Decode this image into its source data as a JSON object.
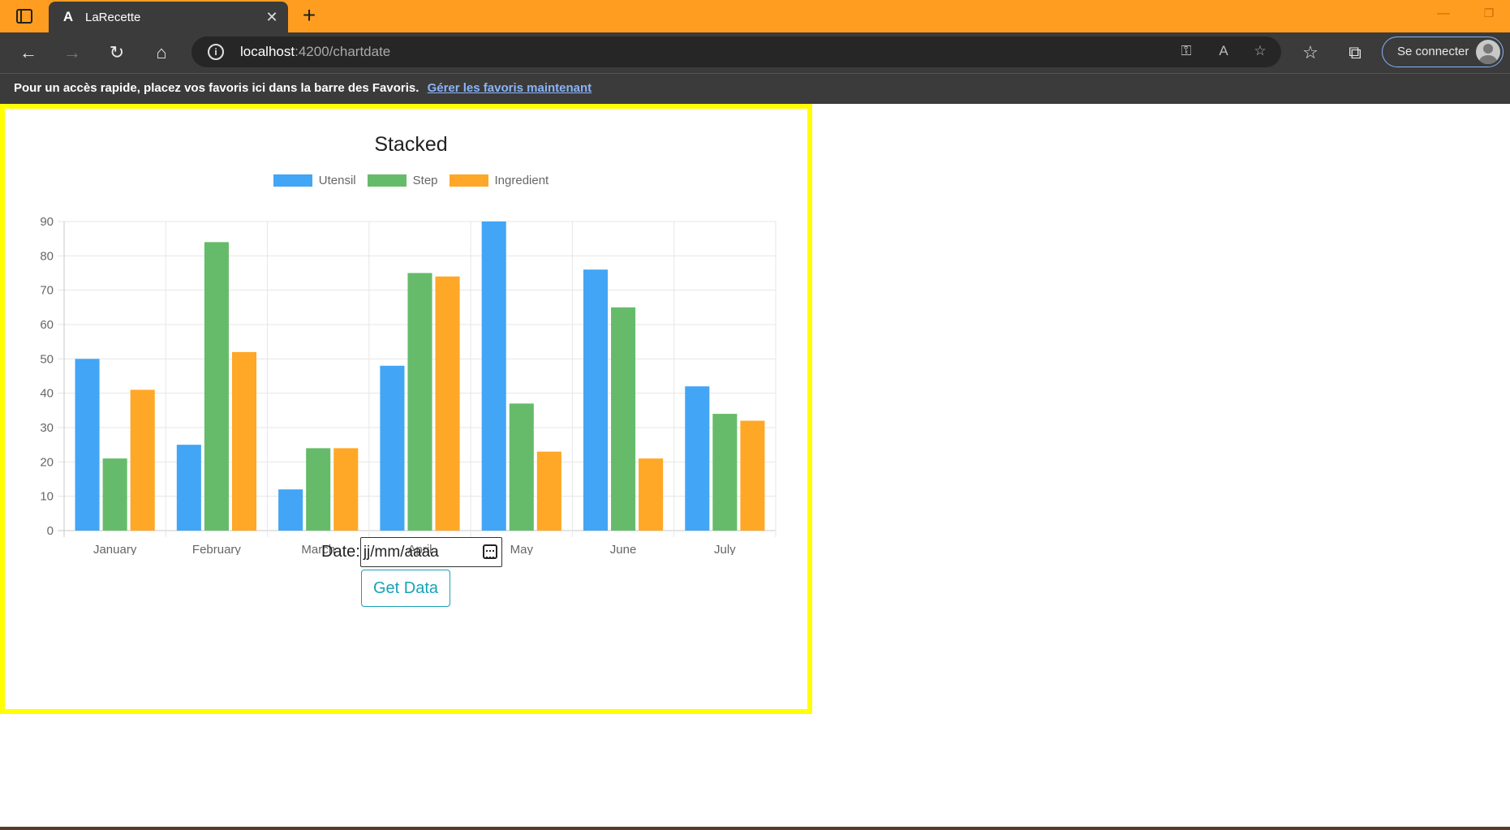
{
  "browser": {
    "tab_title": "LaRecette",
    "tab_favicon": "A",
    "url_host": "localhost",
    "url_path": ":4200/chartdate",
    "signin_label": "Se connecter",
    "accent_color": "#ff9d21"
  },
  "favorites_bar": {
    "message": "Pour un accès rapide, placez vos favoris ici dans la barre des Favoris.",
    "link": "Gérer les favoris maintenant"
  },
  "form": {
    "date_label": "Date:",
    "date_placeholder": "jj/mm/aaaa",
    "button_label": "Get Data"
  },
  "chart_data": {
    "type": "bar",
    "title": "Stacked",
    "categories": [
      "January",
      "February",
      "March",
      "April",
      "May",
      "June",
      "July"
    ],
    "series": [
      {
        "name": "Utensil",
        "color": "#42a5f5",
        "values": [
          50,
          25,
          12,
          48,
          90,
          76,
          42
        ]
      },
      {
        "name": "Step",
        "color": "#66bb6a",
        "values": [
          21,
          84,
          24,
          75,
          37,
          65,
          34
        ]
      },
      {
        "name": "Ingredient",
        "color": "#ffa726",
        "values": [
          41,
          52,
          24,
          74,
          23,
          21,
          32
        ]
      }
    ],
    "ylim": [
      0,
      90
    ],
    "yticks": [
      0,
      10,
      20,
      30,
      40,
      50,
      60,
      70,
      80,
      90
    ],
    "grid": true,
    "legend": "top"
  }
}
